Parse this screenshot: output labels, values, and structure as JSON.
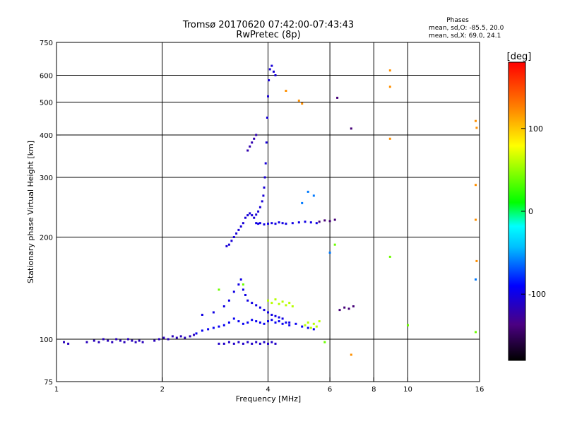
{
  "chart_data": {
    "type": "scatter",
    "title": "Tromsø 20170620 07:42:00-07:43:43",
    "subtitle": "RwPretec (8p)",
    "xlabel": "Frequency [MHz]",
    "ylabel": "Stationary phase Virtual Height [km]",
    "x_scale": "log",
    "y_scale": "log",
    "xlim": [
      1,
      16
    ],
    "ylim": [
      75,
      750
    ],
    "x_ticks": [
      1,
      2,
      4,
      6,
      8,
      10,
      16
    ],
    "x_tick_labels": [
      "1",
      "2",
      "4",
      "6",
      "8",
      "10",
      "16"
    ],
    "x_grid": [
      2,
      4,
      6,
      8,
      10
    ],
    "y_ticks": [
      75,
      100,
      200,
      300,
      400,
      500,
      600,
      750
    ],
    "y_tick_labels": [
      "75",
      "100",
      "200",
      "300",
      "400",
      "500",
      "600",
      "750"
    ],
    "y_grid": [
      100,
      200,
      300,
      400,
      500,
      600
    ],
    "grid": true,
    "stats": {
      "heading": "Phases",
      "line_o": "mean, sd,O: -85.5, 20.0",
      "line_x": "mean, sd,X:  69.0, 24.1"
    },
    "colorbar": {
      "label": "[deg]",
      "range": [
        -180,
        180
      ],
      "ticks": [
        100,
        0,
        -100
      ],
      "tick_labels": [
        "100",
        "0",
        "-100"
      ],
      "stops": [
        "#000000",
        "#4b0082",
        "#0000ff",
        "#00bfff",
        "#00ffff",
        "#00ff00",
        "#ffff00",
        "#ff8000",
        "#ff0000"
      ]
    },
    "series": [
      {
        "phase": -115,
        "x": [
          1.05,
          1.08,
          1.22,
          1.28,
          1.32,
          1.36,
          1.4,
          1.44,
          1.48,
          1.52,
          1.56,
          1.6,
          1.64,
          1.68,
          1.72,
          1.76,
          1.9,
          1.96,
          2.02,
          2.08,
          2.14,
          2.2,
          2.26,
          2.32,
          2.4,
          2.46
        ],
        "y": [
          98,
          97,
          98,
          99,
          98,
          100,
          99,
          98,
          100,
          99,
          98,
          100,
          99,
          98,
          99,
          98,
          99,
          100,
          101,
          100,
          102,
          101,
          102,
          101,
          102,
          103
        ]
      },
      {
        "phase": -95,
        "x": [
          2.5,
          2.6,
          2.7,
          2.8,
          2.9,
          3.0,
          3.1,
          3.2,
          3.3,
          3.4,
          3.5,
          3.6,
          3.7,
          3.8,
          3.9,
          4.0,
          4.1,
          4.2,
          4.3,
          4.4,
          4.5,
          4.6,
          4.8,
          5.0,
          5.2,
          5.4
        ],
        "y": [
          104,
          106,
          107,
          108,
          109,
          110,
          112,
          115,
          113,
          111,
          112,
          114,
          113,
          112,
          111,
          113,
          114,
          112,
          113,
          111,
          112,
          110,
          111,
          109,
          108,
          107
        ]
      },
      {
        "phase": -100,
        "x": [
          2.6,
          2.8,
          3.0,
          3.1,
          3.2,
          3.3,
          3.35,
          3.4,
          3.45,
          3.5,
          3.6,
          3.7,
          3.8,
          3.9,
          4.0,
          4.1,
          4.2,
          4.3,
          4.4,
          4.6
        ],
        "y": [
          118,
          120,
          125,
          130,
          138,
          145,
          150,
          140,
          135,
          130,
          128,
          126,
          124,
          122,
          120,
          118,
          117,
          116,
          115,
          112
        ]
      },
      {
        "phase": -110,
        "x": [
          2.9,
          3.0,
          3.1,
          3.2,
          3.3,
          3.4,
          3.5,
          3.6,
          3.7,
          3.8,
          3.9,
          4.0,
          4.1,
          4.2
        ],
        "y": [
          97,
          97,
          98,
          97,
          98,
          97,
          98,
          97,
          98,
          97,
          98,
          97,
          98,
          97
        ]
      },
      {
        "phase": -105,
        "x": [
          3.05,
          3.1,
          3.15,
          3.2,
          3.25,
          3.3,
          3.35,
          3.4,
          3.45,
          3.5,
          3.55,
          3.6,
          3.65,
          3.7,
          3.75,
          3.8,
          3.85,
          3.88,
          3.9,
          3.92,
          3.94,
          3.96,
          3.98,
          4.0,
          4.02,
          4.05,
          4.1,
          4.15,
          4.2
        ],
        "y": [
          188,
          190,
          195,
          200,
          205,
          210,
          215,
          220,
          228,
          232,
          235,
          232,
          228,
          233,
          238,
          245,
          255,
          265,
          280,
          300,
          330,
          380,
          450,
          520,
          580,
          625,
          640,
          615,
          600
        ]
      },
      {
        "phase": -100,
        "x": [
          3.7,
          3.75,
          3.8,
          3.9,
          4.0,
          4.1,
          4.2,
          4.3,
          4.4,
          4.5,
          4.7,
          4.9,
          5.1,
          5.3,
          5.5
        ],
        "y": [
          220,
          219,
          220,
          218,
          219,
          220,
          219,
          221,
          220,
          219,
          220,
          221,
          222,
          221,
          220
        ]
      },
      {
        "phase": -120,
        "x": [
          3.5,
          3.55,
          3.6,
          3.65,
          3.7
        ],
        "y": [
          360,
          370,
          380,
          390,
          400
        ]
      },
      {
        "phase": -140,
        "x": [
          5.6,
          5.8,
          6.0,
          6.2,
          6.4,
          6.6,
          6.8,
          7.0,
          6.3,
          6.9
        ],
        "y": [
          222,
          224,
          223,
          225,
          122,
          124,
          123,
          125,
          515,
          418
        ]
      },
      {
        "phase": 60,
        "x": [
          4.0,
          4.1,
          4.2,
          4.3,
          4.4,
          4.5,
          4.6,
          4.7,
          5.1,
          5.2,
          5.3,
          5.4,
          5.5,
          5.6
        ],
        "y": [
          130,
          128,
          131,
          127,
          129,
          126,
          128,
          125,
          110,
          112,
          108,
          111,
          109,
          113
        ]
      },
      {
        "phase": 120,
        "x": [
          4.5,
          4.9,
          5.0,
          8.9,
          8.9,
          8.9,
          15.6,
          15.7,
          15.6,
          15.6,
          15.7,
          6.9
        ],
        "y": [
          540,
          505,
          495,
          620,
          555,
          390,
          440,
          420,
          285,
          225,
          170,
          90
        ]
      },
      {
        "phase": 40,
        "x": [
          2.9,
          3.4,
          5.8,
          6.2,
          8.9,
          10.0,
          15.6
        ],
        "y": [
          140,
          145,
          98,
          190,
          175,
          110,
          105
        ]
      },
      {
        "phase": -60,
        "x": [
          5.2,
          5.4,
          5.0,
          6.0,
          15.6
        ],
        "y": [
          272,
          265,
          252,
          180,
          150
        ]
      }
    ]
  }
}
